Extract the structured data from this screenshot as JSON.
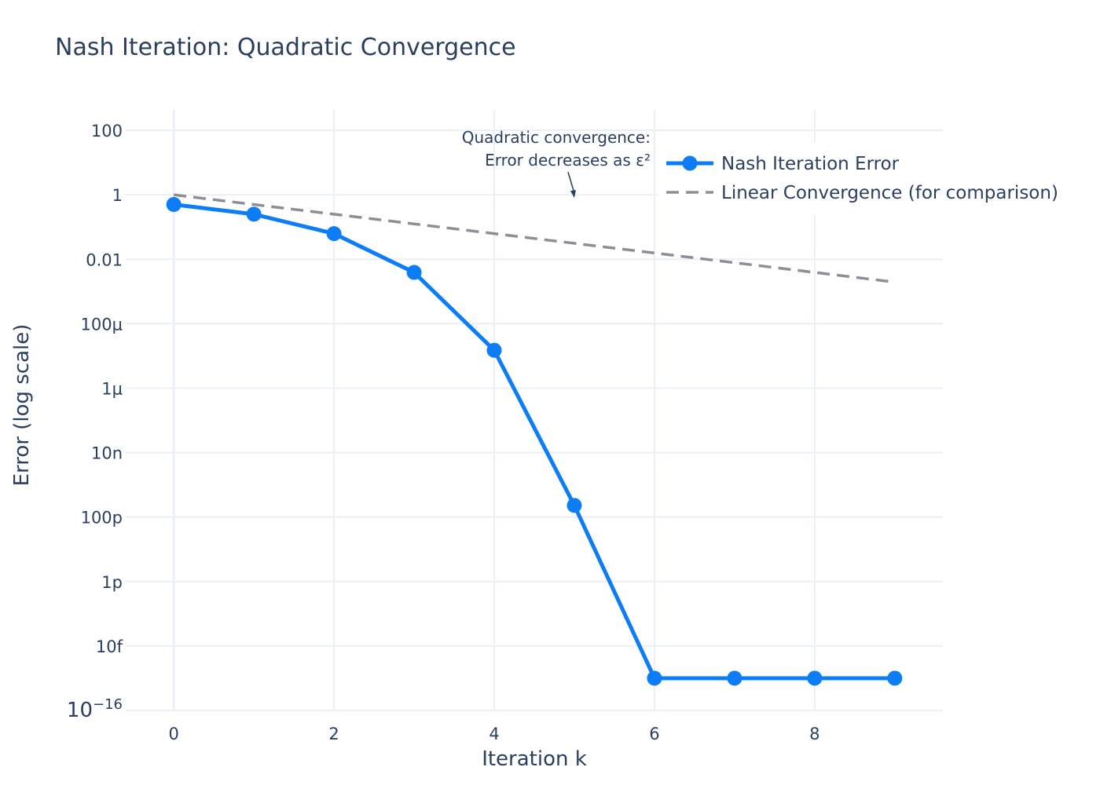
{
  "chart_data": {
    "type": "line",
    "title": "Nash Iteration: Quadratic Convergence",
    "xlabel": "Iteration k",
    "ylabel": "Error (log scale)",
    "xlim": [
      -0.6,
      9.6
    ],
    "ylim": [
      1e-16,
      1000
    ],
    "ylog": true,
    "grid": true,
    "legend_position": "top-right",
    "x_ticks": [
      0,
      2,
      4,
      6,
      8
    ],
    "x_tick_labels": [
      "0",
      "2",
      "4",
      "6",
      "8"
    ],
    "y_ticks": [
      100,
      1,
      0.01,
      0.0001,
      1e-06,
      1e-08,
      1e-10,
      1e-12,
      1e-14,
      1e-16
    ],
    "y_tick_labels": [
      "100",
      "1",
      "0.01",
      "100μ",
      "1μ",
      "10n",
      "100p",
      "1p",
      "10f",
      ""
    ],
    "y_tick_label_min": {
      "base": "10",
      "exp": "−16"
    },
    "series": [
      {
        "name": "Nash Iteration Error",
        "color": "#0d7cf7",
        "style": "solid-markers",
        "x": [
          0,
          1,
          2,
          3,
          4,
          5,
          6,
          7,
          8,
          9
        ],
        "y": [
          0.5,
          0.25,
          0.0625,
          0.0039,
          1.5e-05,
          2.3e-10,
          1e-15,
          1e-15,
          1e-15,
          1e-15
        ]
      },
      {
        "name": "Linear Convergence (for comparison)",
        "color": "#8c8f96",
        "style": "dashed",
        "x": [
          0,
          1,
          2,
          3,
          4,
          5,
          6,
          7,
          8,
          9
        ],
        "y": [
          1,
          0.5,
          0.25,
          0.125,
          0.0625,
          0.03125,
          0.015625,
          0.0078125,
          0.00390625,
          0.001953125
        ]
      }
    ],
    "annotation": {
      "lines": [
        "Quadratic convergence:",
        "Error decreases as ε²"
      ],
      "x": 5,
      "y": 0.8
    }
  }
}
